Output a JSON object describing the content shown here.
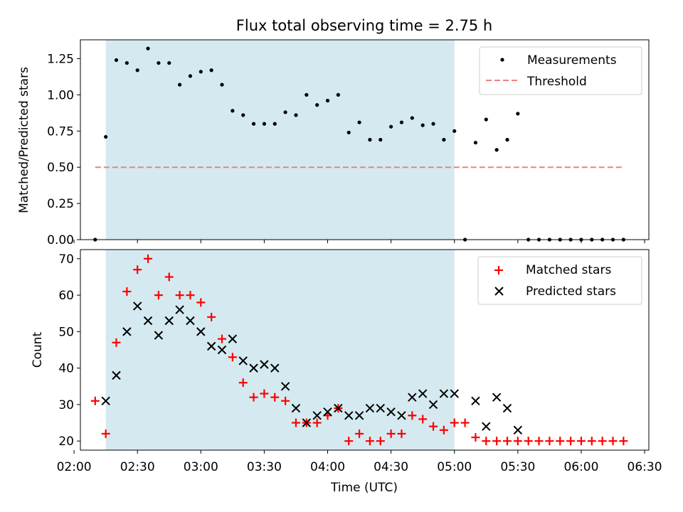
{
  "figure": {
    "title": "Flux total observing time = 2.75 h"
  },
  "chart_data": [
    {
      "type": "scatter",
      "ylabel": "Matched/Predicted stars",
      "xlabel": "",
      "ylim": [
        0,
        1.38
      ],
      "yticks": [
        "0.00",
        "0.25",
        "0.50",
        "0.75",
        "1.00",
        "1.25"
      ],
      "ytick_values": [
        0,
        0.25,
        0.5,
        0.75,
        1.0,
        1.25
      ],
      "shaded_interval": [
        "02:15",
        "05:00"
      ],
      "shade_color": "#d4eaf0",
      "legend": {
        "position": "top-right",
        "entries": [
          "Measurements",
          "Threshold"
        ]
      },
      "series": [
        {
          "name": "Measurements",
          "marker": "dot",
          "color": "#000000",
          "x": [
            "02:10",
            "02:15",
            "02:20",
            "02:25",
            "02:30",
            "02:35",
            "02:40",
            "02:45",
            "02:50",
            "02:55",
            "03:00",
            "03:05",
            "03:10",
            "03:15",
            "03:20",
            "03:25",
            "03:30",
            "03:35",
            "03:40",
            "03:45",
            "03:50",
            "03:55",
            "04:00",
            "04:05",
            "04:10",
            "04:15",
            "04:20",
            "04:25",
            "04:30",
            "04:35",
            "04:40",
            "04:45",
            "04:50",
            "04:55",
            "05:00",
            "05:05",
            "05:10",
            "05:15",
            "05:20",
            "05:25",
            "05:30",
            "05:35",
            "05:40",
            "05:45",
            "05:50",
            "05:55",
            "06:00",
            "06:05",
            "06:10",
            "06:15",
            "06:20"
          ],
          "y": [
            0.0,
            0.71,
            1.24,
            1.22,
            1.17,
            1.32,
            1.22,
            1.22,
            1.07,
            1.13,
            1.16,
            1.17,
            1.07,
            0.89,
            0.86,
            0.8,
            0.8,
            0.8,
            0.88,
            0.86,
            1.0,
            0.93,
            0.96,
            1.0,
            0.74,
            0.81,
            0.69,
            0.69,
            0.78,
            0.81,
            0.84,
            0.79,
            0.8,
            0.69,
            0.75,
            0.0,
            0.67,
            0.83,
            0.62,
            0.69,
            0.87,
            0.0,
            0.0,
            0.0,
            0.0,
            0.0,
            0.0,
            0.0,
            0.0,
            0.0,
            0.0
          ]
        },
        {
          "name": "Threshold",
          "marker": "dashed-line",
          "color": "#f08080",
          "x": [
            "02:10",
            "06:20"
          ],
          "y": [
            0.5,
            0.5
          ]
        }
      ]
    },
    {
      "type": "scatter",
      "ylabel": "Count",
      "xlabel": "Time (UTC)",
      "ylim": [
        17.5,
        72.5
      ],
      "yticks": [
        "20",
        "30",
        "40",
        "50",
        "60",
        "70"
      ],
      "ytick_values": [
        20,
        30,
        40,
        50,
        60,
        70
      ],
      "xlim": [
        "02:03",
        "06:32"
      ],
      "xticks": [
        "02:00",
        "02:30",
        "03:00",
        "03:30",
        "04:00",
        "04:30",
        "05:00",
        "05:30",
        "06:00",
        "06:30"
      ],
      "shaded_interval": [
        "02:15",
        "05:00"
      ],
      "shade_color": "#d4eaf0",
      "legend": {
        "position": "top-right",
        "entries": [
          "Matched stars",
          "Predicted stars"
        ]
      },
      "series": [
        {
          "name": "Matched stars",
          "marker": "plus",
          "color": "#ff0000",
          "x": [
            "02:10",
            "02:15",
            "02:20",
            "02:25",
            "02:30",
            "02:35",
            "02:40",
            "02:45",
            "02:50",
            "02:55",
            "03:00",
            "03:05",
            "03:10",
            "03:15",
            "03:20",
            "03:25",
            "03:30",
            "03:35",
            "03:40",
            "03:45",
            "03:50",
            "03:55",
            "04:00",
            "04:05",
            "04:10",
            "04:15",
            "04:20",
            "04:25",
            "04:30",
            "04:35",
            "04:40",
            "04:45",
            "04:50",
            "04:55",
            "05:00",
            "05:05",
            "05:10",
            "05:15",
            "05:20",
            "05:25",
            "05:30",
            "05:35",
            "05:40",
            "05:45",
            "05:50",
            "05:55",
            "06:00",
            "06:05",
            "06:10",
            "06:15",
            "06:20"
          ],
          "y": [
            31,
            22,
            47,
            61,
            67,
            70,
            60,
            65,
            60,
            60,
            58,
            54,
            48,
            43,
            36,
            32,
            33,
            32,
            31,
            25,
            25,
            25,
            27,
            29,
            20,
            22,
            20,
            20,
            22,
            22,
            27,
            26,
            24,
            23,
            25,
            25,
            21,
            20,
            20,
            20,
            20,
            20,
            20,
            20,
            20,
            20,
            20,
            20,
            20,
            20,
            20
          ]
        },
        {
          "name": "Predicted stars",
          "marker": "x",
          "color": "#000000",
          "x": [
            "02:15",
            "02:20",
            "02:25",
            "02:30",
            "02:35",
            "02:40",
            "02:45",
            "02:50",
            "02:55",
            "03:00",
            "03:05",
            "03:10",
            "03:15",
            "03:20",
            "03:25",
            "03:30",
            "03:35",
            "03:40",
            "03:45",
            "03:50",
            "03:55",
            "04:00",
            "04:05",
            "04:10",
            "04:15",
            "04:20",
            "04:25",
            "04:30",
            "04:35",
            "04:40",
            "04:45",
            "04:50",
            "04:55",
            "05:00",
            "05:10",
            "05:15",
            "05:20",
            "05:25",
            "05:30"
          ],
          "y": [
            31,
            38,
            50,
            57,
            53,
            49,
            53,
            56,
            53,
            50,
            46,
            45,
            48,
            42,
            40,
            41,
            40,
            35,
            29,
            25,
            27,
            28,
            29,
            27,
            27,
            29,
            29,
            28,
            27,
            32,
            33,
            30,
            33,
            33,
            31,
            24,
            32,
            29,
            23
          ]
        }
      ]
    }
  ]
}
